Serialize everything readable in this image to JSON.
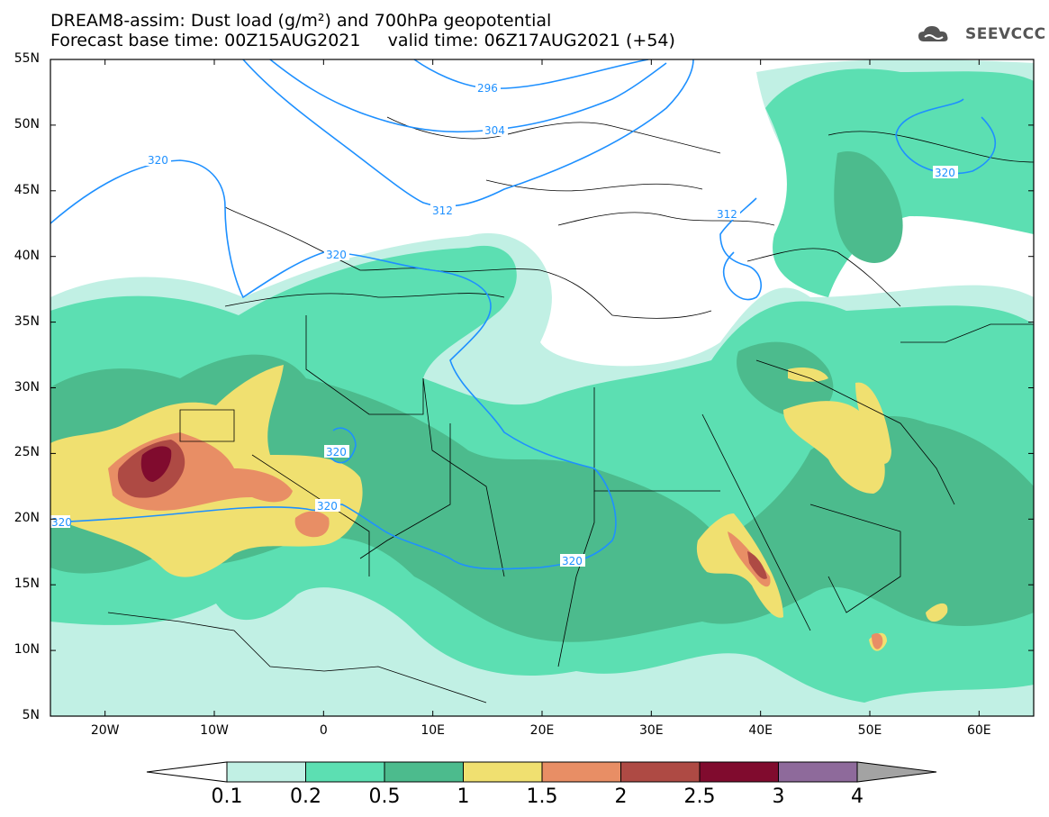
{
  "title": {
    "line1": "DREAM8-assim: Dust load (g/m²) and 700hPa geopotential",
    "line2": "Forecast base time: 00Z15AUG2021     valid time: 06Z17AUG2021 (+54)"
  },
  "logo": {
    "text": "SEEVCCC",
    "icon": "cloud-icon"
  },
  "map": {
    "lon_range": [
      -25,
      65
    ],
    "lat_range": [
      5,
      55
    ],
    "lat_ticks": [
      "5N",
      "10N",
      "15N",
      "20N",
      "25N",
      "30N",
      "35N",
      "40N",
      "45N",
      "50N",
      "55N"
    ],
    "lon_ticks": [
      "20W",
      "10W",
      "0",
      "10E",
      "20E",
      "30E",
      "40E",
      "50E",
      "60E"
    ],
    "contour_labels": [
      "296",
      "304",
      "312",
      "320",
      "320",
      "312",
      "320",
      "320",
      "320",
      "320",
      "320"
    ]
  },
  "colorbar": {
    "ticks": [
      "0.1",
      "0.2",
      "0.5",
      "1",
      "1.5",
      "2",
      "2.5",
      "3",
      "4"
    ],
    "colors": [
      "#c1f0e4",
      "#5cdfb2",
      "#4cbb8d",
      "#f0e070",
      "#e88e65",
      "#ae4a44",
      "#800b2e",
      "#8e6a9b"
    ],
    "extend_low_color": "#ffffff",
    "extend_high_color": "#a3a3a3"
  }
}
